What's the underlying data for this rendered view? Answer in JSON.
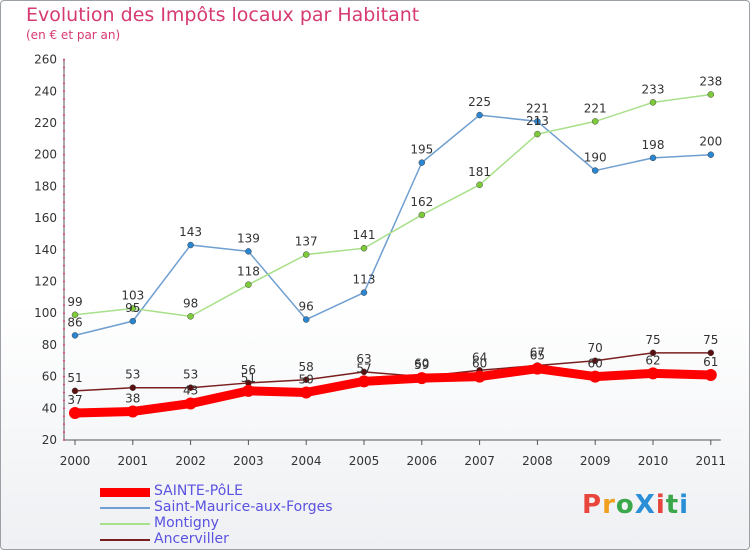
{
  "header": {
    "title": "Evolution des Impôts locaux par Habitant",
    "subtitle": "(en € et par an)"
  },
  "logo": {
    "text": "ProXiti",
    "colors": [
      "#e8463c",
      "#f0a020",
      "#3aa84a",
      "#2a8fd6",
      "#e8463c",
      "#3aa84a",
      "#2a8fd6"
    ]
  },
  "chart_data": {
    "type": "line",
    "title": "Evolution des Impôts locaux par Habitant",
    "subtitle": "(en € et par an)",
    "x": [
      2000,
      2001,
      2002,
      2003,
      2004,
      2005,
      2006,
      2007,
      2008,
      2009,
      2010,
      2011
    ],
    "ylim": [
      20,
      260
    ],
    "yticks": [
      20,
      40,
      60,
      80,
      100,
      120,
      140,
      160,
      180,
      200,
      220,
      240,
      260
    ],
    "grid": false,
    "legend_position": "bottom-left",
    "series": [
      {
        "name": "SAINTE-PôLE",
        "color": "#ff0000",
        "point_color": "#ff0000",
        "values": [
          37,
          38,
          43,
          51,
          50,
          57,
          59,
          60,
          65,
          60,
          62,
          61
        ],
        "labels": [
          "37",
          "38",
          "43",
          "51",
          "50",
          "57",
          "59",
          "60",
          "65",
          "60",
          "62",
          "61"
        ]
      },
      {
        "name": "Saint-Maurice-aux-Forges",
        "color": "#6f9fd0",
        "point_color": "#2a86d1",
        "values": [
          86,
          95,
          143,
          139,
          96,
          113,
          195,
          225,
          221,
          190,
          198,
          200
        ],
        "labels": [
          "86",
          "95",
          "143",
          "139",
          "96",
          "113",
          "195",
          "225",
          "221",
          "190",
          "198",
          "200"
        ]
      },
      {
        "name": "Montigny",
        "color": "#a8e08a",
        "point_color": "#7ecb3a",
        "values": [
          99,
          103,
          98,
          118,
          137,
          141,
          162,
          181,
          213,
          221,
          233,
          238
        ],
        "labels": [
          "99",
          "103",
          "98",
          "118",
          "137",
          "141",
          "162",
          "181",
          "213",
          "221",
          "233",
          "238"
        ]
      },
      {
        "name": "Ancerviller",
        "color": "#7a1f1f",
        "point_color": "#5a1010",
        "values": [
          51,
          53,
          53,
          56,
          58,
          63,
          60,
          64,
          67,
          70,
          75,
          75
        ],
        "labels": [
          "51",
          "53",
          "53",
          "56",
          "58",
          "63",
          "60",
          "64",
          "67",
          "70",
          "75",
          "75"
        ]
      }
    ]
  }
}
